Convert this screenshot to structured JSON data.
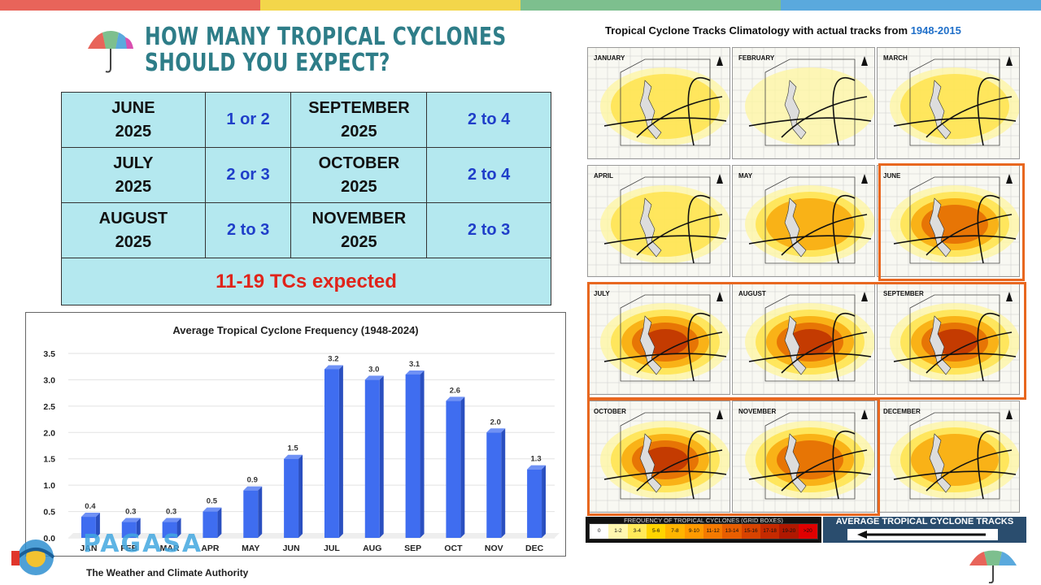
{
  "header": {
    "title_line1": "HOW MANY TROPICAL CYCLONES",
    "title_line2": "SHOULD YOU EXPECT?"
  },
  "top_bar_colors": [
    "#e8645a",
    "#f3d64a",
    "#7dbf8e",
    "#5aa9dd"
  ],
  "forecast_table": {
    "rows": [
      {
        "month_a": "JUNE",
        "year_a": "2025",
        "value_a": "1 or 2",
        "month_b": "SEPTEMBER",
        "year_b": "2025",
        "value_b": "2 to 4"
      },
      {
        "month_a": "JULY",
        "year_a": "2025",
        "value_a": "2 or 3",
        "month_b": "OCTOBER",
        "year_b": "2025",
        "value_b": "2 to 4"
      },
      {
        "month_a": "AUGUST",
        "year_a": "2025",
        "value_a": "2 to 3",
        "month_b": "NOVEMBER",
        "year_b": "2025",
        "value_b": "2 to 3"
      }
    ],
    "total": "11-19 TCs expected"
  },
  "chart_data": {
    "type": "bar",
    "title": "Average Tropical Cyclone Frequency (1948-2024)",
    "categories": [
      "JAN",
      "FEB",
      "MAR",
      "APR",
      "MAY",
      "JUN",
      "JUL",
      "AUG",
      "SEP",
      "OCT",
      "NOV",
      "DEC"
    ],
    "values": [
      0.4,
      0.3,
      0.3,
      0.5,
      0.9,
      1.5,
      3.2,
      3.0,
      3.1,
      2.6,
      2.0,
      1.3
    ],
    "data_labels": [
      "0.4",
      "0.3",
      "0.3",
      "0.5",
      "0.9",
      "1.5",
      "3.2",
      "3.0",
      "3.1",
      "2.6",
      "2.0",
      "1.3"
    ],
    "yticks": [
      "0.0",
      "0.5",
      "1.0",
      "1.5",
      "2.0",
      "2.5",
      "3.0",
      "3.5"
    ],
    "ylim": [
      0,
      3.5
    ],
    "xlabel": "",
    "ylabel": "",
    "grid": true,
    "bar_color": "#3f6df0"
  },
  "climatology": {
    "title_prefix": "Tropical Cyclone Tracks Climatology with actual tracks from ",
    "title_years": "1948-2015",
    "panels": [
      {
        "month": "JANUARY",
        "intensity": 1
      },
      {
        "month": "FEBRUARY",
        "intensity": 0
      },
      {
        "month": "MARCH",
        "intensity": 1
      },
      {
        "month": "APRIL",
        "intensity": 1
      },
      {
        "month": "MAY",
        "intensity": 2
      },
      {
        "month": "JUNE",
        "intensity": 3
      },
      {
        "month": "JULY",
        "intensity": 4
      },
      {
        "month": "AUGUST",
        "intensity": 4
      },
      {
        "month": "SEPTEMBER",
        "intensity": 4
      },
      {
        "month": "OCTOBER",
        "intensity": 4
      },
      {
        "month": "NOVEMBER",
        "intensity": 3
      },
      {
        "month": "DECEMBER",
        "intensity": 2
      }
    ],
    "legend_title": "FREQUENCY OF TROPICAL CYCLONES (GRID BOXES)",
    "legend_bins": [
      "0",
      "1-2",
      "3-4",
      "5-6",
      "7-8",
      "9-10",
      "11-12",
      "13-14",
      "15-16",
      "17-18",
      "19-20",
      ">20"
    ],
    "legend_colors": [
      "#ffffff",
      "#fff7b0",
      "#ffe95a",
      "#ffd400",
      "#ffb400",
      "#ff9a00",
      "#f57a00",
      "#e85e00",
      "#d84300",
      "#c62a00",
      "#b01800",
      "#e00000"
    ],
    "tracks_title": "AVERAGE TROPICAL CYCLONE TRACKS"
  },
  "logo": {
    "word": "PAGASA",
    "tagline": "The Weather and Climate Authority"
  }
}
